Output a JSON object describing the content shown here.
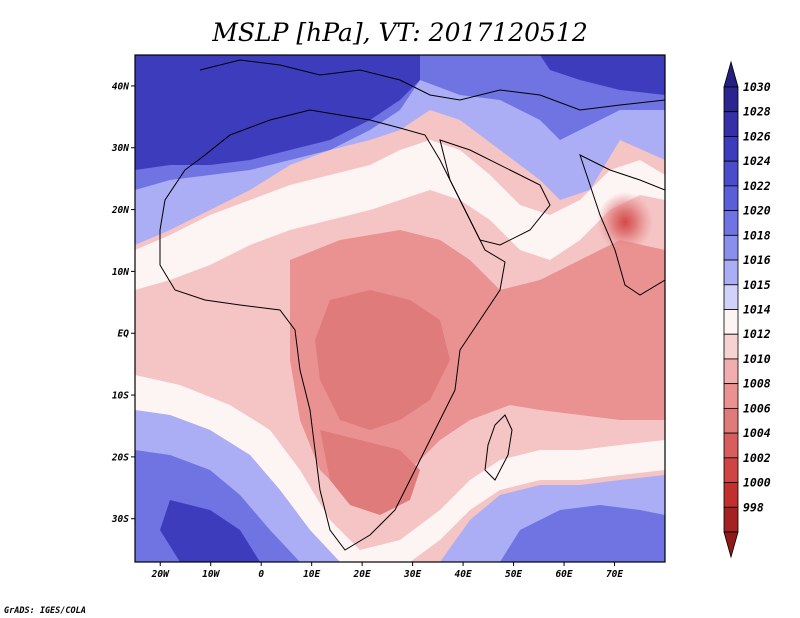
{
  "title": "MSLP [hPa], VT: 2017120512",
  "credit": "GrADS: IGES/COLA",
  "map": {
    "lon_range": [
      -25,
      80
    ],
    "lat_range": [
      -37,
      45
    ],
    "x_ticks": [
      {
        "lon": -20,
        "label": "20W"
      },
      {
        "lon": -10,
        "label": "10W"
      },
      {
        "lon": 0,
        "label": "0"
      },
      {
        "lon": 10,
        "label": "10E"
      },
      {
        "lon": 20,
        "label": "20E"
      },
      {
        "lon": 30,
        "label": "30E"
      },
      {
        "lon": 40,
        "label": "40E"
      },
      {
        "lon": 50,
        "label": "50E"
      },
      {
        "lon": 60,
        "label": "60E"
      },
      {
        "lon": 70,
        "label": "70E"
      }
    ],
    "y_ticks": [
      {
        "lat": 40,
        "label": "40N"
      },
      {
        "lat": 30,
        "label": "30N"
      },
      {
        "lat": 20,
        "label": "20N"
      },
      {
        "lat": 10,
        "label": "10N"
      },
      {
        "lat": 0,
        "label": "EQ"
      },
      {
        "lat": -10,
        "label": "10S"
      },
      {
        "lat": -20,
        "label": "20S"
      },
      {
        "lat": -30,
        "label": "30S"
      }
    ]
  },
  "colorbar": {
    "levels": [
      {
        "label": "1030",
        "color": "#2b2590"
      },
      {
        "label": "1028",
        "color": "#3530a8"
      },
      {
        "label": "1026",
        "color": "#3d3cbd"
      },
      {
        "label": "1024",
        "color": "#4a4ccc"
      },
      {
        "label": "1022",
        "color": "#5a5fd8"
      },
      {
        "label": "1020",
        "color": "#6f74e2"
      },
      {
        "label": "1018",
        "color": "#8a8eec"
      },
      {
        "label": "1016",
        "color": "#abaef4"
      },
      {
        "label": "1015",
        "color": "#d0d2fa"
      },
      {
        "label": "1014",
        "color": "#fdf4f4"
      },
      {
        "label": "1012",
        "color": "#f7d2d2"
      },
      {
        "label": "1010",
        "color": "#f2aeae"
      },
      {
        "label": "1008",
        "color": "#ea9292"
      },
      {
        "label": "1006",
        "color": "#e07b7b"
      },
      {
        "label": "1004",
        "color": "#d85e5e"
      },
      {
        "label": "1002",
        "color": "#cf4444"
      },
      {
        "label": "1000",
        "color": "#c22f2f"
      },
      {
        "label": "998",
        "color": "#a52222"
      }
    ],
    "top_arrow_color": "#241f80",
    "bottom_arrow_color": "#8f1a1a"
  }
}
